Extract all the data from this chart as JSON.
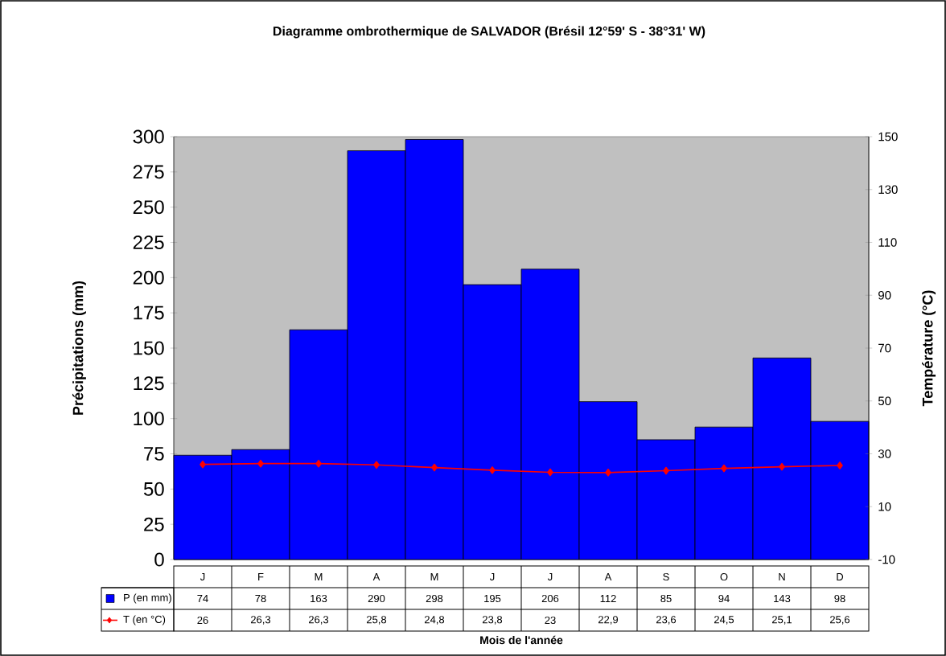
{
  "chart_data": {
    "type": "bar",
    "title": "Diagramme ombrothermique de SALVADOR (Brésil 12°59' S - 38°31' W)",
    "xlabel": "Mois de l'année",
    "ylabel": "Précipitations (mm)",
    "y2label": "Température (°C)",
    "categories": [
      "J",
      "F",
      "M",
      "A",
      "M",
      "J",
      "J",
      "A",
      "S",
      "O",
      "N",
      "D"
    ],
    "series": [
      {
        "name": "P (en mm)",
        "color": "#0000ff",
        "values": [
          74,
          78,
          163,
          290,
          298,
          195,
          206,
          112,
          85,
          94,
          143,
          98
        ],
        "value_labels": [
          "74",
          "78",
          "163",
          "290",
          "298",
          "195",
          "206",
          "112",
          "85",
          "94",
          "143",
          "98"
        ]
      },
      {
        "name": "T (en °C)",
        "type": "line",
        "axis": "y2",
        "color": "#ff0000",
        "marker": "diamond",
        "values": [
          26,
          26.3,
          26.3,
          25.8,
          24.8,
          23.8,
          23,
          22.9,
          23.6,
          24.5,
          25.1,
          25.6
        ],
        "value_labels": [
          "26",
          "26,3",
          "26,3",
          "25,8",
          "24,8",
          "23,8",
          "23",
          "22,9",
          "23,6",
          "24,5",
          "25,1",
          "25,6"
        ]
      }
    ],
    "ylim": [
      0,
      300
    ],
    "yticks": [
      0,
      25,
      50,
      75,
      100,
      125,
      150,
      175,
      200,
      225,
      250,
      275,
      300
    ],
    "y2lim": [
      -10,
      150
    ],
    "y2ticks": [
      -10,
      10,
      30,
      50,
      70,
      90,
      110,
      130,
      150
    ],
    "grid": false,
    "legend": "bottom"
  }
}
